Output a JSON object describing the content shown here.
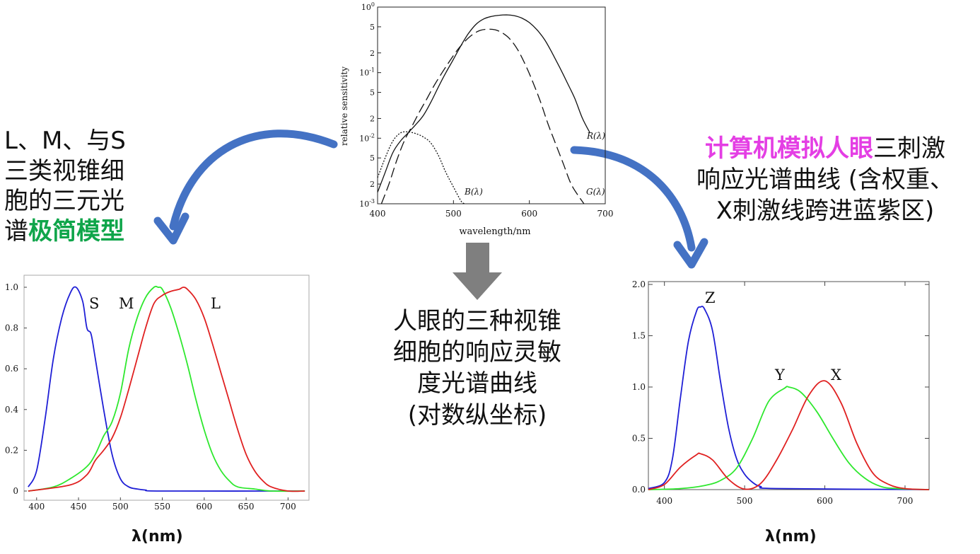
{
  "captions": {
    "left": {
      "line1": "L、M、与S",
      "line2": "三类视锥细",
      "line3": "胞的三元光",
      "line4_plain": "谱",
      "line4_highlight": "极简模型"
    },
    "center": {
      "line1": "人眼的三种视锥",
      "line2": "细胞的响应灵敏",
      "line3": "度光谱曲线",
      "line4": "(对数纵坐标)"
    },
    "right": {
      "line1_highlight": "计算机模拟人眼",
      "line1_plain": "三刺激",
      "line2": "响应光谱曲线 (含权重、",
      "line3": "X刺激线跨进蓝紫区)"
    }
  },
  "colors": {
    "arrow_blue": "#4472c4",
    "arrow_gray": "#7f7f7f",
    "highlight_green": "#0fa54a",
    "highlight_magenta": "#e43ee4",
    "series_blue": "#1f1fd6",
    "series_green": "#2ee82e",
    "series_red": "#e02020"
  },
  "chart_data": [
    {
      "id": "top-log-sensitivity",
      "type": "line",
      "title": "",
      "xlabel": "wavelength/nm",
      "ylabel": "relative sensitivity",
      "xlim": [
        400,
        700
      ],
      "ylim": [
        0.001,
        1
      ],
      "yscale": "log",
      "xticks": [
        400,
        500,
        600,
        700
      ],
      "ytick_labels": [
        "10^-3",
        "2",
        "5",
        "10^-2",
        "2",
        "5",
        "10^-1",
        "2",
        "5",
        "10^0"
      ],
      "series": [
        {
          "name": "R(λ)",
          "style": "solid",
          "x": [
            400,
            410,
            420,
            430,
            440,
            450,
            460,
            470,
            480,
            490,
            500,
            510,
            520,
            530,
            540,
            550,
            560,
            570,
            580,
            590,
            600,
            610,
            620,
            630,
            640,
            650,
            660,
            670,
            680
          ],
          "y": [
            0.0015,
            0.003,
            0.006,
            0.009,
            0.012,
            0.016,
            0.022,
            0.035,
            0.06,
            0.1,
            0.16,
            0.26,
            0.4,
            0.55,
            0.66,
            0.72,
            0.75,
            0.76,
            0.74,
            0.68,
            0.58,
            0.45,
            0.32,
            0.2,
            0.12,
            0.07,
            0.04,
            0.02,
            0.012
          ]
        },
        {
          "name": "G(λ)",
          "style": "dashed",
          "x": [
            405,
            415,
            425,
            435,
            445,
            455,
            465,
            475,
            485,
            495,
            505,
            515,
            525,
            535,
            545,
            555,
            565,
            575,
            585,
            595,
            605,
            615,
            625,
            635,
            645,
            655,
            665,
            672
          ],
          "y": [
            0.001,
            0.002,
            0.0045,
            0.009,
            0.015,
            0.025,
            0.04,
            0.065,
            0.1,
            0.15,
            0.22,
            0.3,
            0.38,
            0.44,
            0.46,
            0.45,
            0.4,
            0.32,
            0.22,
            0.13,
            0.07,
            0.035,
            0.016,
            0.008,
            0.004,
            0.002,
            0.0013,
            0.001
          ]
        },
        {
          "name": "B(λ)",
          "style": "dotted",
          "x": [
            400,
            410,
            420,
            430,
            440,
            450,
            460,
            470,
            480,
            490,
            500,
            510,
            515
          ],
          "y": [
            0.0025,
            0.005,
            0.009,
            0.012,
            0.0125,
            0.0118,
            0.0105,
            0.0085,
            0.0055,
            0.003,
            0.0018,
            0.0011,
            0.001
          ]
        }
      ]
    },
    {
      "id": "left-lms",
      "type": "line",
      "title": "",
      "xlabel": "λ(nm)",
      "ylabel": "",
      "xlim": [
        385,
        725
      ],
      "ylim": [
        0,
        1.0
      ],
      "xticks": [
        400,
        450,
        500,
        550,
        600,
        650,
        700
      ],
      "yticks": [
        "0",
        "0.2",
        "0.4",
        "0.6",
        "0.8",
        "1.0"
      ],
      "series": [
        {
          "name": "S",
          "color": "#1f1fd6",
          "x": [
            390,
            400,
            410,
            420,
            430,
            440,
            447,
            455,
            460,
            465,
            470,
            480,
            490,
            500,
            510,
            520,
            530,
            550,
            720
          ],
          "y": [
            0.02,
            0.1,
            0.35,
            0.65,
            0.85,
            0.97,
            1.0,
            0.93,
            0.8,
            0.77,
            0.65,
            0.4,
            0.18,
            0.06,
            0.02,
            0.01,
            0.005,
            0.0,
            0.0
          ]
        },
        {
          "name": "M",
          "color": "#2ee82e",
          "x": [
            390,
            420,
            440,
            460,
            470,
            480,
            490,
            500,
            510,
            520,
            530,
            540,
            545,
            550,
            560,
            570,
            580,
            590,
            600,
            610,
            620,
            630,
            640,
            660,
            680,
            720
          ],
          "y": [
            0.0,
            0.02,
            0.06,
            0.12,
            0.18,
            0.27,
            0.34,
            0.48,
            0.7,
            0.85,
            0.95,
            1.0,
            1.0,
            0.99,
            0.9,
            0.77,
            0.62,
            0.45,
            0.3,
            0.18,
            0.1,
            0.05,
            0.02,
            0.01,
            0.0,
            0.0
          ]
        },
        {
          "name": "L",
          "color": "#e02020",
          "x": [
            390,
            440,
            460,
            470,
            480,
            490,
            500,
            510,
            520,
            530,
            540,
            550,
            560,
            570,
            575,
            580,
            590,
            600,
            610,
            620,
            630,
            640,
            650,
            660,
            670,
            680,
            700,
            720
          ],
          "y": [
            0.0,
            0.03,
            0.08,
            0.15,
            0.2,
            0.26,
            0.36,
            0.5,
            0.65,
            0.8,
            0.92,
            0.96,
            0.98,
            0.99,
            1.0,
            0.99,
            0.94,
            0.85,
            0.72,
            0.58,
            0.44,
            0.3,
            0.18,
            0.1,
            0.05,
            0.02,
            0.0,
            0.0
          ]
        }
      ]
    },
    {
      "id": "right-xyz",
      "type": "line",
      "title": "",
      "xlabel": "λ(nm)",
      "ylabel": "",
      "xlim": [
        380,
        730
      ],
      "ylim": [
        0,
        2.0
      ],
      "xticks": [
        400,
        500,
        600,
        700
      ],
      "yticks": [
        "0.0",
        "0.5",
        "1.0",
        "1.5",
        "2.0"
      ],
      "series": [
        {
          "name": "Z",
          "color": "#1f1fd6",
          "x": [
            380,
            400,
            410,
            420,
            430,
            440,
            445,
            450,
            460,
            470,
            480,
            490,
            500,
            510,
            520,
            540,
            730
          ],
          "y": [
            0.01,
            0.07,
            0.3,
            0.9,
            1.45,
            1.74,
            1.78,
            1.76,
            1.55,
            1.05,
            0.6,
            0.3,
            0.15,
            0.07,
            0.03,
            0.01,
            0.0
          ]
        },
        {
          "name": "Y",
          "color": "#2ee82e",
          "x": [
            380,
            420,
            450,
            470,
            490,
            510,
            530,
            550,
            555,
            570,
            590,
            610,
            630,
            650,
            670,
            690,
            730
          ],
          "y": [
            0.0,
            0.01,
            0.04,
            0.09,
            0.21,
            0.5,
            0.86,
            0.99,
            1.0,
            0.95,
            0.76,
            0.5,
            0.26,
            0.11,
            0.03,
            0.01,
            0.0
          ]
        },
        {
          "name": "X",
          "color": "#e02020",
          "x": [
            380,
            400,
            420,
            440,
            445,
            460,
            480,
            500,
            520,
            540,
            560,
            580,
            600,
            620,
            640,
            660,
            680,
            700,
            730
          ],
          "y": [
            0.0,
            0.05,
            0.22,
            0.34,
            0.35,
            0.29,
            0.1,
            0.005,
            0.06,
            0.29,
            0.59,
            0.92,
            1.06,
            0.85,
            0.45,
            0.16,
            0.05,
            0.01,
            0.0
          ]
        }
      ]
    }
  ]
}
